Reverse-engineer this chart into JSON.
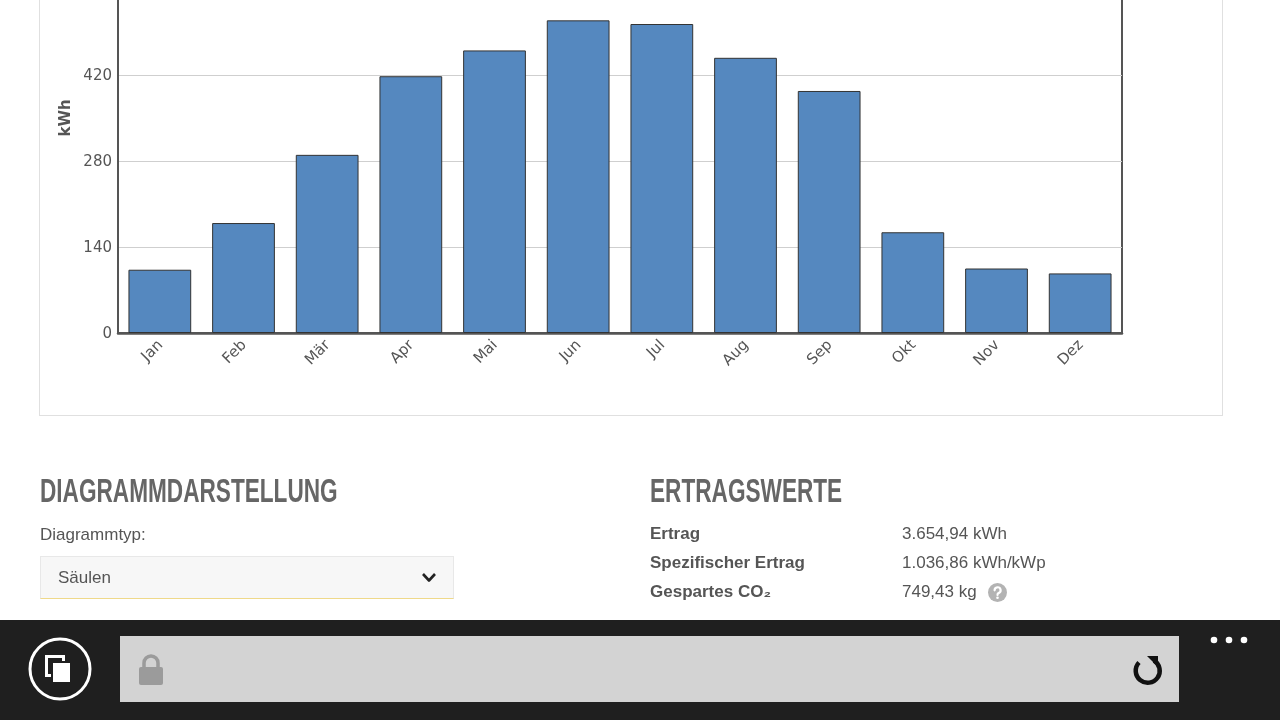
{
  "chart_data": [
    {
      "type": "bar",
      "ylabel": "kWh",
      "categories": [
        "Jan",
        "Feb",
        "Mär",
        "Apr",
        "Mai",
        "Jun",
        "Jul",
        "Aug",
        "Sep",
        "Okt",
        "Nov",
        "Dez"
      ],
      "values": [
        103,
        179,
        290,
        418,
        460,
        509,
        503,
        448,
        394,
        164,
        105,
        97
      ],
      "color": "#5588bf",
      "ylim": [
        0,
        700
      ],
      "yticks": [
        0,
        140,
        280,
        420
      ],
      "grid": "y"
    },
    {
      "type": "other",
      "title": "DIAGRAMMDARSTELLUNG",
      "annotations": [
        "Diagrammtyp:",
        "Säulen"
      ]
    },
    {
      "type": "other",
      "title": "ERTRAGSWERTE",
      "annotations": [
        "Ertrag",
        "3.654,94 kWh",
        "Spezifischer Ertrag",
        "1.036,86 kWh/kWp",
        "Gespartes CO₂",
        "749,43 kg"
      ]
    }
  ]
}
